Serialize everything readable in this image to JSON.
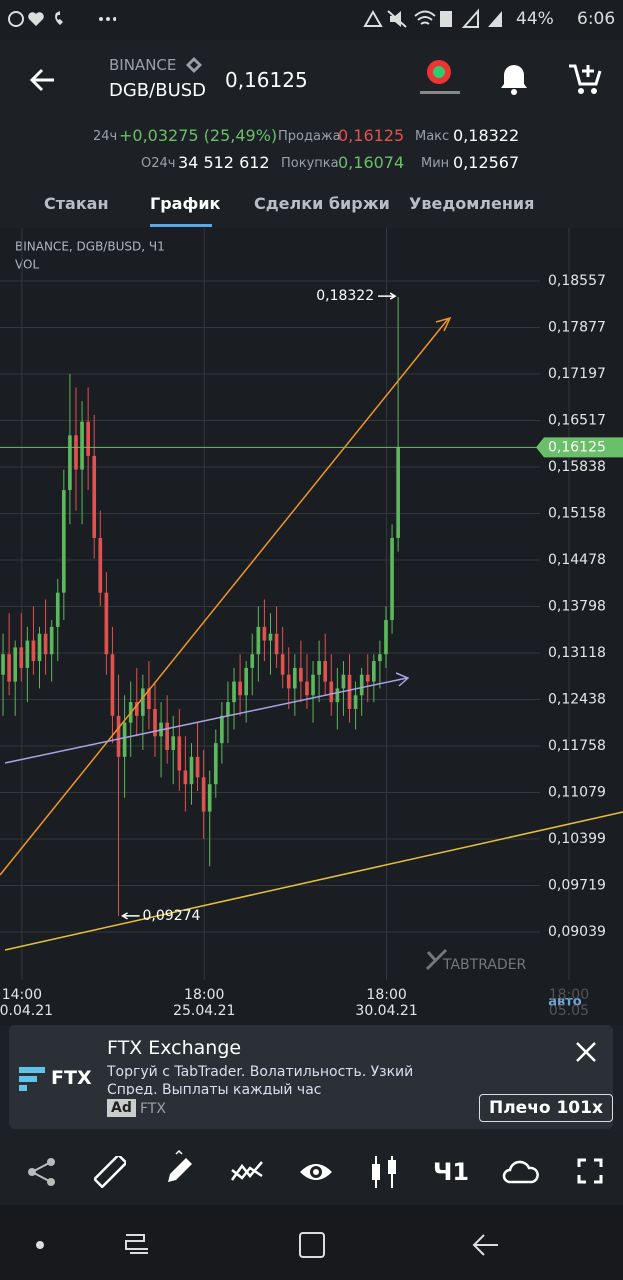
{
  "status": {
    "battery": "44%",
    "time": "6:06"
  },
  "header": {
    "exchange": "BINANCE",
    "pair": "DGB/BUSD",
    "price": "0,16125"
  },
  "stats": [
    {
      "label": "24ч",
      "value": "+0,03275 (25,49%)"
    },
    {
      "label": "Продажа",
      "value": "0,16125"
    },
    {
      "label": "Макс",
      "value": "0,18322"
    },
    {
      "label": "О24ч",
      "value": "34 512 612"
    },
    {
      "label": "Покупка",
      "value": "0,16074"
    },
    {
      "label": "Мин",
      "value": "0,12567"
    }
  ],
  "tabs": [
    "Стакан",
    "График",
    "Сделки биржи",
    "Уведомления"
  ],
  "chart_data": {
    "type": "candlestick",
    "title": "BINANCE, DGB/BUSD, Ч1",
    "indicator": "VOL",
    "watermark": "TABTRADER",
    "scale_mode": "авто",
    "ylim": [
      0.08337,
      0.19332
    ],
    "yticks": [
      {
        "value": 0.18557,
        "label": "0,18557"
      },
      {
        "value": 0.17877,
        "label": "0,17877"
      },
      {
        "value": 0.17197,
        "label": "0,17197"
      },
      {
        "value": 0.16517,
        "label": "0,16517"
      },
      {
        "value": 0.15838,
        "label": "0,15838"
      },
      {
        "value": 0.15158,
        "label": "0,15158"
      },
      {
        "value": 0.14478,
        "label": "0,14478"
      },
      {
        "value": 0.13798,
        "label": "0,13798"
      },
      {
        "value": 0.13118,
        "label": "0,13118"
      },
      {
        "value": 0.12438,
        "label": "0,12438"
      },
      {
        "value": 0.11758,
        "label": "0,11758"
      },
      {
        "value": 0.11079,
        "label": "0,11079"
      },
      {
        "value": 0.10399,
        "label": "0,10399"
      },
      {
        "value": 0.09719,
        "label": "0,09719"
      },
      {
        "value": 0.09039,
        "label": "0,09039"
      }
    ],
    "xlim": [
      -0.5,
      101.5
    ],
    "xticks": [
      {
        "value": 3.1,
        "label": "14:00",
        "date": "20.04.21"
      },
      {
        "value": 33.1,
        "label": "18:00",
        "date": "25.04.21"
      },
      {
        "value": 63.1,
        "label": "18:00",
        "date": "30.04.21"
      },
      {
        "value": 93.1,
        "label": "18:00",
        "date": "05.05"
      }
    ],
    "up_color": "#5cb85c",
    "down_color": "#e0524f",
    "last_price": {
      "value": 0.16125,
      "label": "0,16125",
      "color": "#6abf69"
    },
    "high_label": {
      "value": 0.18322,
      "label": "0,18322",
      "index": 65
    },
    "low_label": {
      "value": 0.09274,
      "label": "0,09274",
      "index": 19
    },
    "candles": [
      {
        "o": 0.128,
        "h": 0.134,
        "l": 0.122,
        "c": 0.131
      },
      {
        "o": 0.131,
        "h": 0.137,
        "l": 0.125,
        "c": 0.127
      },
      {
        "o": 0.127,
        "h": 0.133,
        "l": 0.122,
        "c": 0.132
      },
      {
        "o": 0.132,
        "h": 0.137,
        "l": 0.127,
        "c": 0.129
      },
      {
        "o": 0.129,
        "h": 0.135,
        "l": 0.124,
        "c": 0.133
      },
      {
        "o": 0.133,
        "h": 0.138,
        "l": 0.128,
        "c": 0.13
      },
      {
        "o": 0.13,
        "h": 0.135,
        "l": 0.126,
        "c": 0.134
      },
      {
        "o": 0.134,
        "h": 0.139,
        "l": 0.128,
        "c": 0.131
      },
      {
        "o": 0.131,
        "h": 0.136,
        "l": 0.127,
        "c": 0.135
      },
      {
        "o": 0.135,
        "h": 0.142,
        "l": 0.13,
        "c": 0.14
      },
      {
        "o": 0.14,
        "h": 0.158,
        "l": 0.136,
        "c": 0.155
      },
      {
        "o": 0.155,
        "h": 0.172,
        "l": 0.15,
        "c": 0.163
      },
      {
        "o": 0.163,
        "h": 0.17,
        "l": 0.152,
        "c": 0.158
      },
      {
        "o": 0.158,
        "h": 0.168,
        "l": 0.15,
        "c": 0.165
      },
      {
        "o": 0.165,
        "h": 0.17,
        "l": 0.155,
        "c": 0.16
      },
      {
        "o": 0.16,
        "h": 0.166,
        "l": 0.145,
        "c": 0.148
      },
      {
        "o": 0.148,
        "h": 0.152,
        "l": 0.138,
        "c": 0.14
      },
      {
        "o": 0.14,
        "h": 0.143,
        "l": 0.128,
        "c": 0.131
      },
      {
        "o": 0.131,
        "h": 0.135,
        "l": 0.118,
        "c": 0.122
      },
      {
        "o": 0.122,
        "h": 0.128,
        "l": 0.09274,
        "c": 0.116
      },
      {
        "o": 0.116,
        "h": 0.125,
        "l": 0.11,
        "c": 0.121
      },
      {
        "o": 0.121,
        "h": 0.127,
        "l": 0.116,
        "c": 0.124
      },
      {
        "o": 0.124,
        "h": 0.129,
        "l": 0.119,
        "c": 0.122
      },
      {
        "o": 0.122,
        "h": 0.128,
        "l": 0.117,
        "c": 0.126
      },
      {
        "o": 0.126,
        "h": 0.13,
        "l": 0.12,
        "c": 0.123
      },
      {
        "o": 0.123,
        "h": 0.127,
        "l": 0.116,
        "c": 0.119
      },
      {
        "o": 0.119,
        "h": 0.124,
        "l": 0.113,
        "c": 0.121
      },
      {
        "o": 0.121,
        "h": 0.125,
        "l": 0.115,
        "c": 0.117
      },
      {
        "o": 0.117,
        "h": 0.122,
        "l": 0.112,
        "c": 0.119
      },
      {
        "o": 0.119,
        "h": 0.123,
        "l": 0.111,
        "c": 0.114
      },
      {
        "o": 0.114,
        "h": 0.119,
        "l": 0.108,
        "c": 0.112
      },
      {
        "o": 0.112,
        "h": 0.118,
        "l": 0.109,
        "c": 0.116
      },
      {
        "o": 0.116,
        "h": 0.121,
        "l": 0.111,
        "c": 0.113
      },
      {
        "o": 0.113,
        "h": 0.117,
        "l": 0.104,
        "c": 0.108
      },
      {
        "o": 0.108,
        "h": 0.114,
        "l": 0.1,
        "c": 0.112
      },
      {
        "o": 0.112,
        "h": 0.12,
        "l": 0.11,
        "c": 0.118
      },
      {
        "o": 0.118,
        "h": 0.124,
        "l": 0.115,
        "c": 0.122
      },
      {
        "o": 0.122,
        "h": 0.127,
        "l": 0.118,
        "c": 0.124
      },
      {
        "o": 0.124,
        "h": 0.129,
        "l": 0.12,
        "c": 0.127
      },
      {
        "o": 0.127,
        "h": 0.131,
        "l": 0.122,
        "c": 0.125
      },
      {
        "o": 0.125,
        "h": 0.13,
        "l": 0.121,
        "c": 0.129
      },
      {
        "o": 0.129,
        "h": 0.134,
        "l": 0.125,
        "c": 0.131
      },
      {
        "o": 0.131,
        "h": 0.138,
        "l": 0.127,
        "c": 0.135
      },
      {
        "o": 0.135,
        "h": 0.139,
        "l": 0.13,
        "c": 0.133
      },
      {
        "o": 0.133,
        "h": 0.137,
        "l": 0.128,
        "c": 0.134
      },
      {
        "o": 0.134,
        "h": 0.138,
        "l": 0.129,
        "c": 0.131
      },
      {
        "o": 0.131,
        "h": 0.135,
        "l": 0.126,
        "c": 0.128
      },
      {
        "o": 0.128,
        "h": 0.132,
        "l": 0.123,
        "c": 0.126
      },
      {
        "o": 0.126,
        "h": 0.131,
        "l": 0.122,
        "c": 0.129
      },
      {
        "o": 0.129,
        "h": 0.133,
        "l": 0.124,
        "c": 0.127
      },
      {
        "o": 0.127,
        "h": 0.131,
        "l": 0.123,
        "c": 0.125
      },
      {
        "o": 0.125,
        "h": 0.13,
        "l": 0.121,
        "c": 0.128
      },
      {
        "o": 0.128,
        "h": 0.133,
        "l": 0.124,
        "c": 0.13
      },
      {
        "o": 0.13,
        "h": 0.134,
        "l": 0.125,
        "c": 0.127
      },
      {
        "o": 0.127,
        "h": 0.131,
        "l": 0.122,
        "c": 0.124
      },
      {
        "o": 0.124,
        "h": 0.129,
        "l": 0.12,
        "c": 0.126
      },
      {
        "o": 0.126,
        "h": 0.13,
        "l": 0.122,
        "c": 0.128
      },
      {
        "o": 0.128,
        "h": 0.131,
        "l": 0.121,
        "c": 0.123
      },
      {
        "o": 0.123,
        "h": 0.127,
        "l": 0.12,
        "c": 0.125
      },
      {
        "o": 0.125,
        "h": 0.129,
        "l": 0.122,
        "c": 0.128
      },
      {
        "o": 0.128,
        "h": 0.131,
        "l": 0.124,
        "c": 0.127
      },
      {
        "o": 0.127,
        "h": 0.131,
        "l": 0.124,
        "c": 0.13
      },
      {
        "o": 0.13,
        "h": 0.133,
        "l": 0.126,
        "c": 0.131
      },
      {
        "o": 0.131,
        "h": 0.138,
        "l": 0.129,
        "c": 0.136
      },
      {
        "o": 0.136,
        "h": 0.15,
        "l": 0.134,
        "c": 0.148
      },
      {
        "o": 0.148,
        "h": 0.18322,
        "l": 0.146,
        "c": 0.16125
      }
    ]
  },
  "ad": {
    "logo": "FTX",
    "title": "FTX Exchange",
    "text": "Торгуй с TabTrader. Волатильность. Узкий Спред. Выплаты каждый час",
    "badge": "Ad",
    "advertiser": "FTX",
    "button": "Плечо 101x"
  },
  "toolbar": {
    "timeframe": "Ч1"
  }
}
